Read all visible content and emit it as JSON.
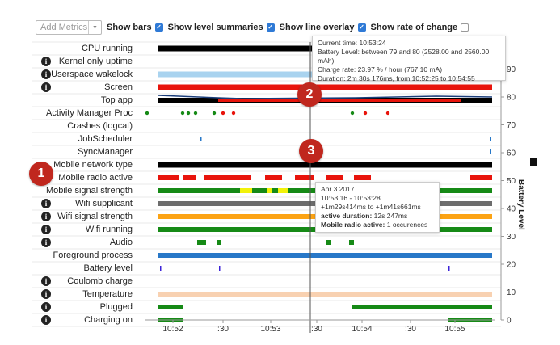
{
  "toolbar": {
    "add_metrics_placeholder": "Add Metrics",
    "options": [
      {
        "label": "Show bars",
        "checked": true
      },
      {
        "label": "Show level summaries",
        "checked": true
      },
      {
        "label": "Show line overlay",
        "checked": true
      },
      {
        "label": "Show rate of change",
        "checked": false
      }
    ]
  },
  "rows": [
    {
      "label": "CPU running",
      "info": false
    },
    {
      "label": "Kernel only uptime",
      "info": true
    },
    {
      "label": "Userspace wakelock",
      "info": true
    },
    {
      "label": "Screen",
      "info": true
    },
    {
      "label": "Top app",
      "info": false
    },
    {
      "label": "Activity Manager Proc",
      "info": false
    },
    {
      "label": "Crashes (logcat)",
      "info": false
    },
    {
      "label": "JobScheduler",
      "info": false
    },
    {
      "label": "SyncManager",
      "info": false
    },
    {
      "label": "Mobile network type",
      "info": false
    },
    {
      "label": "Mobile radio active",
      "info": false
    },
    {
      "label": "Mobile signal strength",
      "info": false
    },
    {
      "label": "Wifi supplicant",
      "info": true
    },
    {
      "label": "Wifi signal strength",
      "info": true
    },
    {
      "label": "Wifi running",
      "info": true
    },
    {
      "label": "Audio",
      "info": true
    },
    {
      "label": "Foreground process",
      "info": false
    },
    {
      "label": "Battery level",
      "info": false
    },
    {
      "label": "Coulomb charge",
      "info": true
    },
    {
      "label": "Temperature",
      "info": true
    },
    {
      "label": "Plugged",
      "info": true
    },
    {
      "label": "Charging on",
      "info": true
    }
  ],
  "x_axis": {
    "ticks": [
      "10:52",
      ":30",
      "10:53",
      ":30",
      "10:54",
      ":30",
      "10:55"
    ]
  },
  "y_axis": {
    "title": "Battery Level",
    "ticks": [
      "0",
      "10",
      "20",
      "30",
      "40",
      "50",
      "60",
      "70",
      "80",
      "90"
    ]
  },
  "tooltip_battery": {
    "lines": [
      "Current time: 10:53:24",
      "Battery Level: between 79 and 80 (2528.00 and 2560.00 mAh)",
      "Charge rate: 23.97 % / hour (767.10 mA)",
      "Duration: 2m 30s 176ms, from 10:52:25 to 10:54:55"
    ]
  },
  "tooltip_radio": {
    "date": "Apr 3 2017",
    "range": "10:53:16 - 10:53:28",
    "offset": "+1m29s414ms to +1m41s661ms",
    "duration_label": "active duration:",
    "duration_value": "12s 247ms",
    "active_label": "Mobile radio active:",
    "active_value": "1 occurences"
  },
  "badges": [
    "1",
    "2",
    "3"
  ],
  "colors": {
    "black": "#000000",
    "red": "#e8140c",
    "green": "#168a16",
    "yellow": "#f2f20a",
    "gray": "#6d6d6d",
    "orange": "#fca314",
    "blue": "#2878c8",
    "lightblue": "#a9d3ef",
    "peach": "#f8d1b1",
    "purple": "#3c23d8",
    "badge": "#c0271e"
  }
}
